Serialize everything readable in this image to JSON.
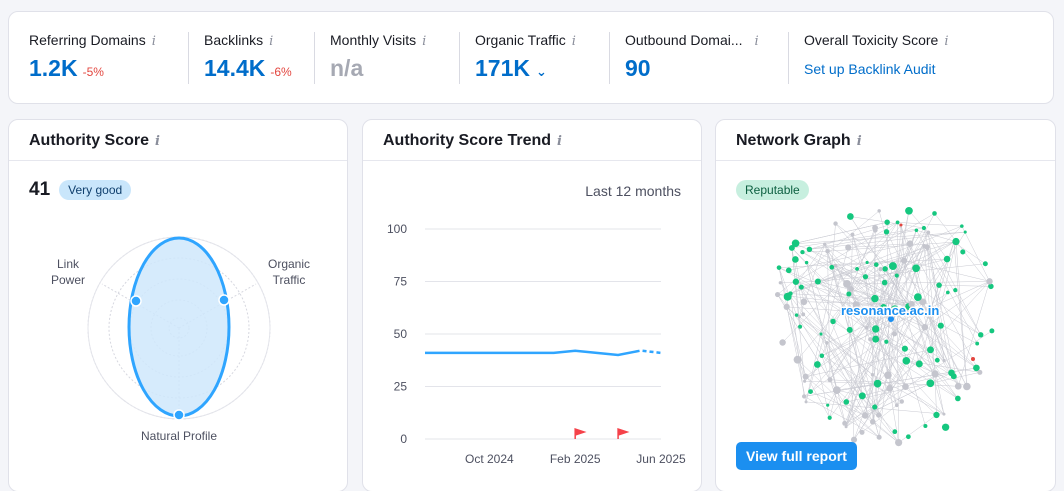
{
  "metrics": [
    {
      "label": "Referring Domains",
      "value": "1.2K",
      "delta": "-5%"
    },
    {
      "label": "Backlinks",
      "value": "14.4K",
      "delta": "-6%"
    },
    {
      "label": "Monthly Visits",
      "value": "n/a"
    },
    {
      "label": "Organic Traffic",
      "value": "171K"
    },
    {
      "label": "Outbound Domai...",
      "value": "90"
    },
    {
      "label": "Overall Toxicity Score",
      "link": "Set up Backlink Audit"
    }
  ],
  "authority": {
    "title": "Authority Score",
    "score": "41",
    "badge": "Very good",
    "radar_labels": {
      "left_1": "Link",
      "left_2": "Power",
      "right_1": "Organic",
      "right_2": "Traffic",
      "bottom": "Natural Profile"
    }
  },
  "trend": {
    "title": "Authority Score Trend",
    "period": "Last 12 months"
  },
  "chart_data": {
    "type": "line",
    "title": "Authority Score Trend",
    "x": [
      "Jul 2024",
      "Aug 2024",
      "Sep 2024",
      "Oct 2024",
      "Nov 2024",
      "Dec 2024",
      "Jan 2025",
      "Feb 2025",
      "Mar 2025",
      "Apr 2025",
      "May 2025",
      "Jun 2025"
    ],
    "values": [
      41,
      41,
      41,
      41,
      41,
      41,
      41,
      42,
      41,
      40,
      42,
      41
    ],
    "ylim": [
      0,
      100
    ],
    "yticks": [
      "100",
      "75",
      "50",
      "25",
      "0"
    ],
    "xticks": [
      "Oct 2024",
      "Feb 2025",
      "Jun 2025"
    ],
    "event_markers_x": [
      "Feb 2025",
      "Apr 2025"
    ],
    "grid": true,
    "colors": {
      "line": "#2fa5ff",
      "marker": "#f5424a",
      "grid": "#e3e4ea"
    }
  },
  "network": {
    "title": "Network Graph",
    "badge": "Reputable",
    "domain": "resonance.ac.in",
    "button": "View full report"
  },
  "colors": {
    "accent": "#006dca",
    "negative": "#e3463f",
    "green_node": "#15c77f",
    "grey_node": "#c4c5cd"
  }
}
